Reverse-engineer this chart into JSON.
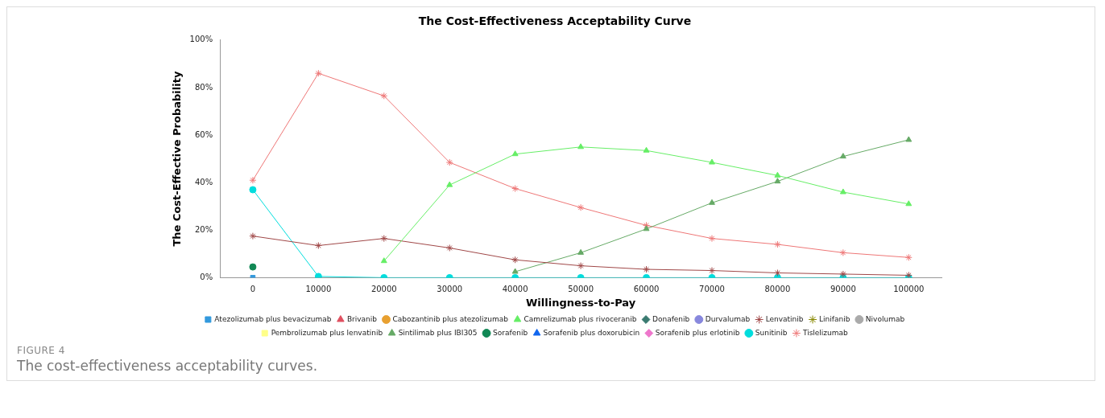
{
  "chart_data": {
    "type": "line",
    "title": "The Cost-Effectiveness Acceptability Curve",
    "xlabel": "Willingness-to-Pay",
    "ylabel": "The Cost-Effective Probability",
    "categories": [
      "0",
      "10000",
      "20000",
      "30000",
      "40000",
      "50000",
      "60000",
      "70000",
      "80000",
      "90000",
      "100000"
    ],
    "ylim": [
      0,
      100
    ],
    "yticks": [
      {
        "value": 0,
        "label": "0%"
      },
      {
        "value": 20,
        "label": "20%"
      },
      {
        "value": 40,
        "label": "40%"
      },
      {
        "value": 60,
        "label": "60%"
      },
      {
        "value": 80,
        "label": "80%"
      },
      {
        "value": 100,
        "label": "100%"
      }
    ],
    "grid": false,
    "legend": "bottom",
    "series": [
      {
        "name": "Atezolizumab plus bevacizumab",
        "color": "#3399dd",
        "marker": "square",
        "values": [
          0,
          null,
          null,
          null,
          null,
          null,
          null,
          null,
          null,
          null,
          null
        ]
      },
      {
        "name": "Brivanib",
        "color": "#e05060",
        "marker": "triangle",
        "values": [
          null,
          null,
          null,
          null,
          null,
          null,
          null,
          null,
          null,
          null,
          null
        ]
      },
      {
        "name": "Cabozantinib plus atezolizumab",
        "color": "#e8a030",
        "marker": "circle",
        "values": [
          null,
          null,
          null,
          null,
          null,
          null,
          null,
          null,
          null,
          null,
          null
        ]
      },
      {
        "name": "Camrelizumab plus rivoceranib",
        "color": "#66ee66",
        "marker": "triangle",
        "values": [
          null,
          null,
          7,
          39,
          52,
          55,
          53.5,
          48.5,
          43,
          36,
          31
        ]
      },
      {
        "name": "Donafenib",
        "color": "#3a7a70",
        "marker": "diamond",
        "values": [
          null,
          null,
          null,
          null,
          null,
          null,
          null,
          null,
          null,
          null,
          null
        ]
      },
      {
        "name": "Durvalumab",
        "color": "#8888dd",
        "marker": "circle",
        "values": [
          null,
          null,
          null,
          null,
          null,
          null,
          null,
          null,
          null,
          null,
          null
        ]
      },
      {
        "name": "Lenvatinib",
        "color": "#a04848",
        "marker": "cross",
        "values": [
          17.5,
          13.5,
          16.5,
          12.5,
          7.5,
          5,
          3.5,
          3,
          2,
          1.5,
          1
        ]
      },
      {
        "name": "Linifanib",
        "color": "#888800",
        "marker": "cross",
        "values": [
          null,
          null,
          null,
          null,
          null,
          null,
          null,
          null,
          null,
          null,
          null
        ]
      },
      {
        "name": "Nivolumab",
        "color": "#aaaaaa",
        "marker": "circle",
        "values": [
          null,
          null,
          null,
          null,
          null,
          null,
          null,
          null,
          null,
          null,
          null
        ]
      },
      {
        "name": "Pembrolizumab plus lenvatinib",
        "color": "#ffff88",
        "marker": "square",
        "values": [
          null,
          null,
          null,
          null,
          null,
          null,
          null,
          null,
          null,
          null,
          null
        ]
      },
      {
        "name": "Sintilimab plus IBI305",
        "color": "#66aa66",
        "marker": "triangle",
        "values": [
          null,
          null,
          null,
          null,
          2.5,
          10.5,
          20.5,
          31.5,
          40.5,
          51,
          58
        ]
      },
      {
        "name": "Sorafenib",
        "color": "#118855",
        "marker": "circle",
        "values": [
          4.5,
          null,
          null,
          null,
          null,
          null,
          null,
          null,
          null,
          null,
          null
        ]
      },
      {
        "name": "Sorafenib plus doxorubicin",
        "color": "#1166ee",
        "marker": "triangle",
        "values": [
          null,
          null,
          null,
          null,
          null,
          null,
          null,
          null,
          null,
          null,
          null
        ]
      },
      {
        "name": "Sorafenib plus erlotinib",
        "color": "#ee77cc",
        "marker": "diamond",
        "values": [
          null,
          null,
          null,
          null,
          null,
          null,
          null,
          null,
          null,
          null,
          null
        ]
      },
      {
        "name": "Sunitinib",
        "color": "#00dddd",
        "marker": "circle",
        "values": [
          37,
          0.5,
          0,
          0,
          0,
          0,
          0,
          0,
          0,
          0,
          0
        ]
      },
      {
        "name": "Tislelizumab",
        "color": "#ee7777",
        "marker": "cross",
        "values": [
          41,
          86,
          76.5,
          48.5,
          37.5,
          29.5,
          22,
          16.5,
          14,
          10.5,
          8.5
        ]
      }
    ],
    "annotations": [
      "FIGURE 4",
      "The cost-effectiveness acceptability curves."
    ]
  }
}
